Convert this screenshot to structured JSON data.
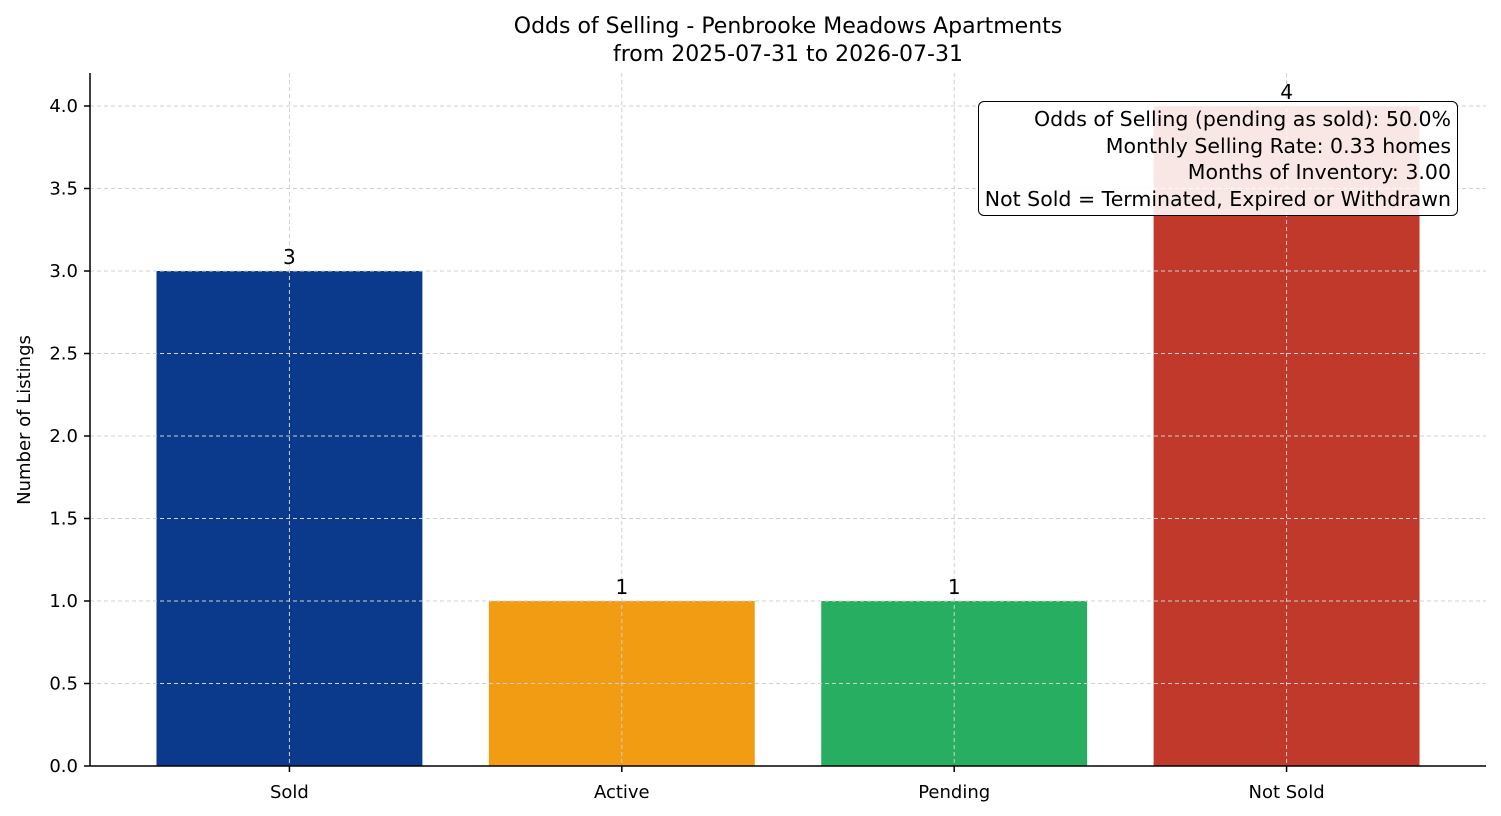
{
  "chart_data": {
    "type": "bar",
    "title": "Odds of Selling - Penbrooke Meadows Apartments",
    "subtitle": "from 2025-07-31 to 2026-07-31",
    "xlabel": "",
    "ylabel": "Number of Listings",
    "categories": [
      "Sold",
      "Active",
      "Pending",
      "Not Sold"
    ],
    "values": [
      3,
      1,
      1,
      4
    ],
    "data_labels": [
      "3",
      "1",
      "1",
      "4"
    ],
    "colors": [
      "#0b3a8c",
      "#f29c14",
      "#27ae60",
      "#c0392b"
    ],
    "ylim": [
      0,
      4.2
    ],
    "yticks": [
      0.0,
      0.5,
      1.0,
      1.5,
      2.0,
      2.5,
      3.0,
      3.5,
      4.0
    ],
    "ytick_labels": [
      "0.0",
      "0.5",
      "1.0",
      "1.5",
      "2.0",
      "2.5",
      "3.0",
      "3.5",
      "4.0"
    ],
    "grid": true,
    "annotation_placement": "top-right",
    "annotation": [
      "Odds of Selling (pending as sold): 50.0%",
      "Monthly Selling Rate: 0.33 homes",
      "Months of Inventory: 3.00",
      "Not Sold = Terminated, Expired or Withdrawn"
    ]
  }
}
